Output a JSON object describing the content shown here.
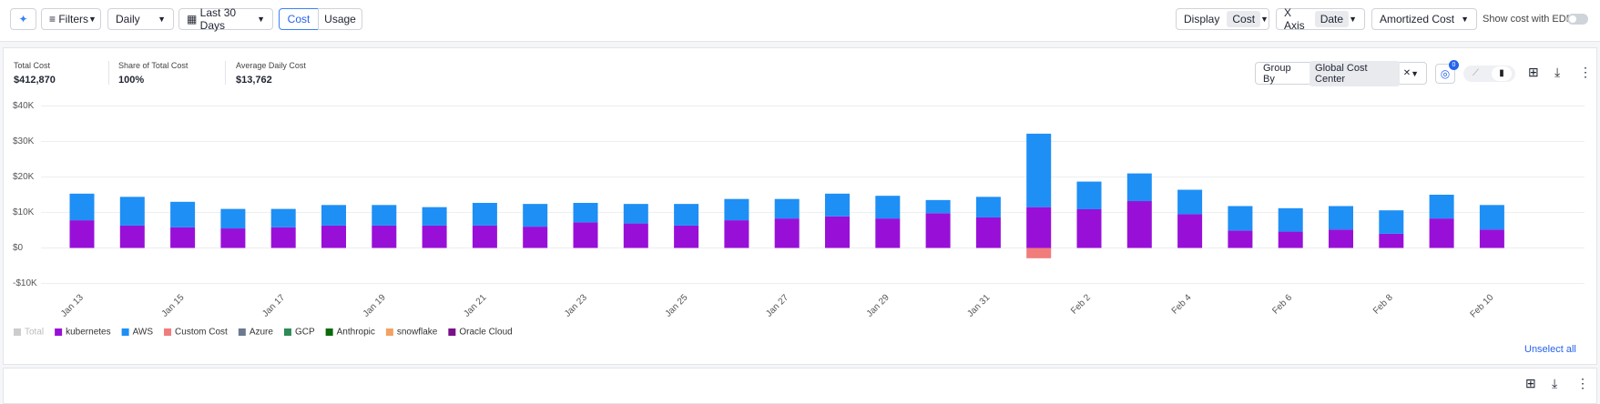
{
  "toolbar": {
    "filters": "Filters",
    "granularity": "Daily",
    "range": "Last 30 Days",
    "modes": [
      "Cost",
      "Usage"
    ],
    "display_label": "Display",
    "display_value": "Cost",
    "xaxis_label": "X Axis",
    "xaxis_value": "Date",
    "cost_type": "Amortized Cost",
    "edp_label": "Show cost with EDP"
  },
  "stats": [
    {
      "label": "Total Cost",
      "value": "$412,870"
    },
    {
      "label": "Share of Total Cost",
      "value": "100%"
    },
    {
      "label": "Average Daily Cost",
      "value": "$13,762"
    }
  ],
  "group_by": {
    "label": "Group By",
    "value": "Global Cost Center"
  },
  "comment_count": "0",
  "unselect_all": "Unselect all",
  "chart_data": {
    "type": "bar",
    "stacked": true,
    "grid": true,
    "categories": [
      "Jan 13",
      null,
      "Jan 15",
      null,
      "Jan 17",
      null,
      "Jan 19",
      null,
      "Jan 21",
      null,
      "Jan 23",
      null,
      "Jan 25",
      null,
      "Jan 27",
      null,
      "Jan 29",
      null,
      "Jan 31",
      null,
      "Feb 2",
      null,
      "Feb 4",
      null,
      "Feb 6",
      null,
      "Feb 8",
      null,
      "Feb 10"
    ],
    "ylim": [
      -10000,
      40000
    ],
    "yticks": [
      {
        "value": -10000,
        "label": "-$10K"
      },
      {
        "value": 0,
        "label": "$0"
      },
      {
        "value": 10000,
        "label": "$10K"
      },
      {
        "value": 20000,
        "label": "$20K"
      },
      {
        "value": 30000,
        "label": "$30K"
      },
      {
        "value": 40000,
        "label": "$40K"
      }
    ],
    "inactive_legend": [
      {
        "name": "Total",
        "color": "#cccccc"
      }
    ],
    "series": [
      {
        "name": "kubernetes",
        "color": "#9810d8",
        "values": [
          7800,
          6300,
          5800,
          5500,
          5800,
          6300,
          6300,
          6300,
          6300,
          6000,
          7200,
          6900,
          6300,
          7800,
          8300,
          8900,
          8300,
          9800,
          8600,
          11500,
          10900,
          13200,
          9500,
          4900,
          4600,
          5200,
          4000,
          8300,
          5200
        ]
      },
      {
        "name": "AWS",
        "color": "#1e8ff5",
        "values": [
          7500,
          8100,
          7200,
          5500,
          5200,
          5800,
          5800,
          5200,
          6400,
          6400,
          5500,
          5500,
          6100,
          6000,
          5500,
          6400,
          6400,
          3700,
          5800,
          20700,
          7800,
          7800,
          6900,
          6900,
          6600,
          6600,
          6600,
          6700,
          6900
        ]
      },
      {
        "name": "Custom Cost",
        "color": "#f07c7c",
        "values": [
          0,
          0,
          0,
          0,
          0,
          0,
          0,
          0,
          0,
          0,
          0,
          0,
          0,
          0,
          0,
          0,
          0,
          0,
          0,
          -2900,
          0,
          0,
          0,
          0,
          0,
          0,
          0,
          0,
          0
        ]
      },
      {
        "name": "Azure",
        "color": "#6b7a8f",
        "values": [
          0,
          0,
          0,
          0,
          0,
          0,
          0,
          0,
          0,
          0,
          0,
          0,
          0,
          0,
          0,
          0,
          0,
          0,
          0,
          0,
          0,
          0,
          0,
          0,
          0,
          0,
          0,
          0,
          0
        ]
      },
      {
        "name": "GCP",
        "color": "#2e8b57",
        "values": [
          0,
          0,
          0,
          0,
          0,
          0,
          0,
          0,
          0,
          0,
          0,
          0,
          0,
          0,
          0,
          0,
          0,
          0,
          0,
          0,
          0,
          0,
          0,
          0,
          0,
          0,
          0,
          0,
          0
        ]
      },
      {
        "name": "Anthropic",
        "color": "#0a6b0a",
        "values": [
          0,
          0,
          0,
          0,
          0,
          0,
          0,
          0,
          0,
          0,
          0,
          0,
          0,
          0,
          0,
          0,
          0,
          0,
          0,
          0,
          0,
          0,
          0,
          0,
          0,
          0,
          0,
          0,
          0
        ]
      },
      {
        "name": "snowflake",
        "color": "#f4a261",
        "values": [
          0,
          0,
          0,
          0,
          0,
          0,
          0,
          0,
          0,
          0,
          0,
          0,
          0,
          0,
          0,
          0,
          0,
          0,
          0,
          0,
          0,
          0,
          0,
          0,
          0,
          0,
          0,
          0,
          0
        ]
      },
      {
        "name": "Oracle Cloud",
        "color": "#7a0f8a",
        "values": [
          0,
          0,
          0,
          0,
          0,
          0,
          0,
          0,
          0,
          0,
          0,
          0,
          0,
          0,
          0,
          0,
          0,
          0,
          0,
          0,
          0,
          0,
          0,
          0,
          0,
          0,
          0,
          0,
          0
        ]
      }
    ]
  }
}
